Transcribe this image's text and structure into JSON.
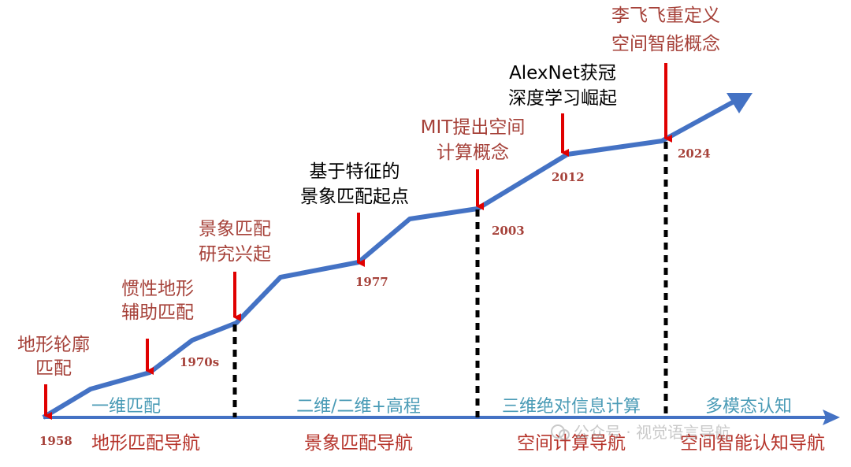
{
  "colors": {
    "line": "#4472C4",
    "arrow": "#E00000",
    "event_text": "#A6423A",
    "event_text_black": "#000000",
    "dimension_text": "#4A9BB6",
    "stage_text": "#B5332A"
  },
  "years": [
    "1958",
    "1970s",
    "1977",
    "2003",
    "2012",
    "2024"
  ],
  "events": [
    {
      "line1": "地形轮廓",
      "line2": "匹配"
    },
    {
      "line1": "惯性地形",
      "line2": "辅助匹配"
    },
    {
      "line1": "景象匹配",
      "line2": "研究兴起"
    },
    {
      "line1": "基于特征的",
      "line2": "景象匹配起点"
    },
    {
      "line1": "MIT提出空间",
      "line2": "计算概念"
    },
    {
      "line1": "AlexNet获冠",
      "line2": "深度学习崛起"
    },
    {
      "line1": "李飞飞重定义",
      "line2": "空间智能概念"
    }
  ],
  "dimensions": [
    "一维匹配",
    "二维/二维+高程",
    "三维绝对信息计算",
    "多模态认知"
  ],
  "stages": [
    "地形匹配导航",
    "景象匹配导航",
    "空间计算导航",
    "空间智能认知导航"
  ],
  "watermark": "公众号 · 视觉语言导航"
}
